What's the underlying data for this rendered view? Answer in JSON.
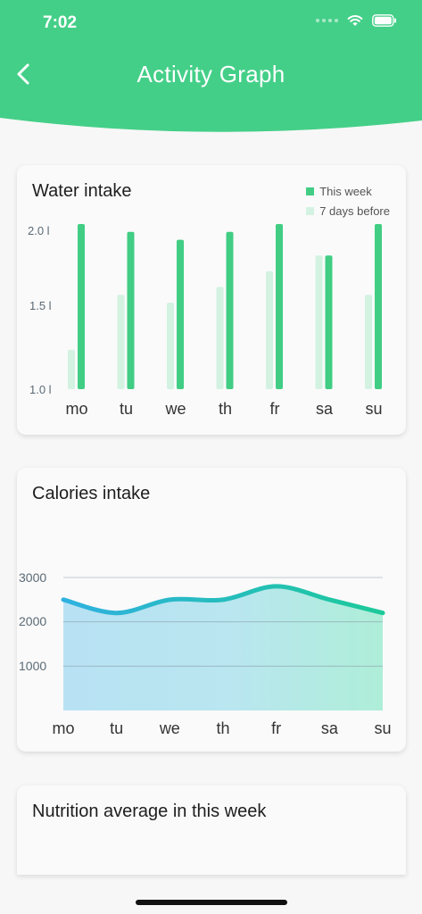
{
  "status_bar": {
    "time": "7:02"
  },
  "header": {
    "title": "Activity Graph"
  },
  "colors": {
    "header": "#44cf88",
    "this_week": "#41cd84",
    "before": "#d3f2e1",
    "line_start": "#2fb1e0",
    "line_end": "#1dc99a"
  },
  "water_card": {
    "title": "Water intake",
    "legend": {
      "this_week": "This week",
      "before": "7 days before"
    },
    "y_ticks": [
      "2.0 l",
      "1.5 l",
      "1.0 l"
    ]
  },
  "calories_card": {
    "title": "Calories intake",
    "y_ticks": [
      "3000",
      "2000",
      "1000"
    ]
  },
  "nutrition_card": {
    "title": "Nutrition average in this week"
  },
  "chart_data": [
    {
      "type": "bar",
      "title": "Water intake",
      "categories": [
        "mo",
        "tu",
        "we",
        "th",
        "fr",
        "sa",
        "su"
      ],
      "series": [
        {
          "name": "This week",
          "values": [
            2.05,
            2.0,
            1.95,
            2.0,
            2.05,
            1.85,
            2.05
          ]
        },
        {
          "name": "7 days before",
          "values": [
            1.25,
            1.6,
            1.55,
            1.65,
            1.75,
            1.85,
            1.6
          ]
        }
      ],
      "ylim": [
        1.0,
        2.05
      ],
      "yticks": [
        1.0,
        1.5,
        2.0
      ]
    },
    {
      "type": "area",
      "title": "Calories intake",
      "categories": [
        "mo",
        "tu",
        "we",
        "th",
        "fr",
        "sa",
        "su"
      ],
      "values": [
        2500,
        2200,
        2500,
        2500,
        2800,
        2500,
        2200
      ],
      "ylim": [
        0,
        3000
      ],
      "yticks": [
        1000,
        2000,
        3000
      ],
      "grid": true
    }
  ]
}
